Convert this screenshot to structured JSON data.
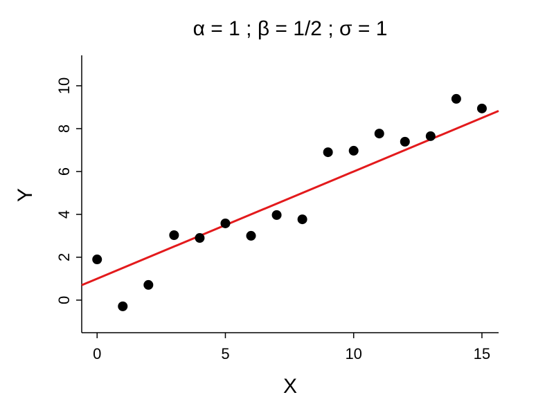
{
  "chart_data": {
    "type": "scatter",
    "title": "α = 1 ; β = 1/2 ; σ = 1",
    "x_label": "X",
    "y_label": "Y",
    "x": [
      0,
      1,
      2,
      3,
      4,
      5,
      6,
      7,
      8,
      9,
      10,
      11,
      12,
      13,
      14,
      15
    ],
    "values": [
      1.9,
      -0.29,
      0.71,
      3.03,
      2.9,
      3.58,
      3.0,
      3.97,
      3.77,
      6.9,
      6.97,
      7.77,
      7.39,
      7.65,
      9.39,
      8.94
    ],
    "color": "#000000",
    "line": {
      "intercept": 1,
      "slope": 0.5,
      "color": "#e31a1c"
    },
    "xlim": [
      -0.6,
      15.65
    ],
    "ylim": [
      -1.52,
      11.42
    ],
    "xticks": [
      0,
      5,
      10,
      15
    ],
    "yticks": [
      0,
      2,
      4,
      6,
      8,
      10
    ]
  }
}
